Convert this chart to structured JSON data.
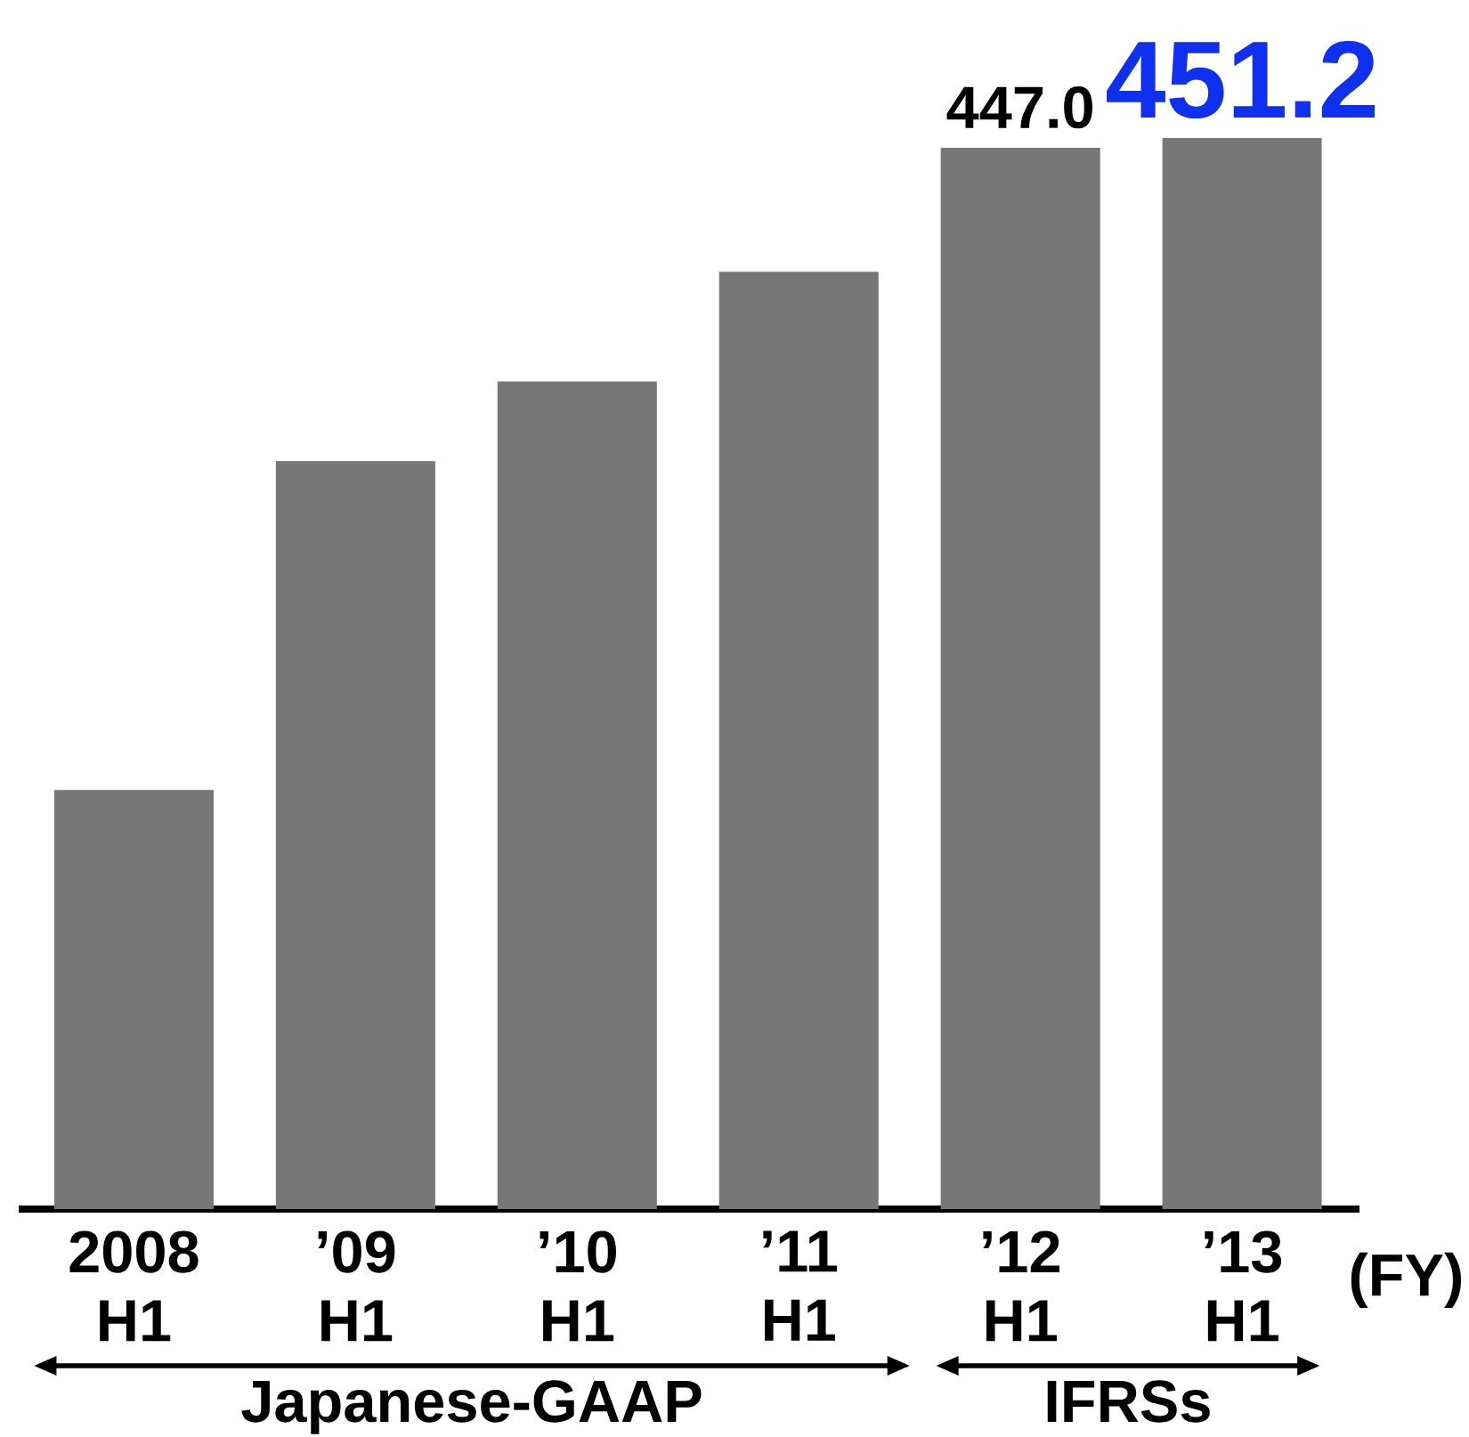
{
  "chart_data": {
    "type": "bar",
    "categories": [
      "2008 H1",
      "’09 H1",
      "’10 H1",
      "’11 H1",
      "’12 H1",
      "’13 H1"
    ],
    "values": [
      176.5,
      315.0,
      348.6,
      394.8,
      447.0,
      451.2
    ],
    "value_labels": [
      null,
      null,
      null,
      null,
      "447.0",
      "451.2"
    ],
    "color": "#777777",
    "annotations": [
      "(FY)",
      "Japanese-GAAP",
      "IFRSs"
    ]
  }
}
